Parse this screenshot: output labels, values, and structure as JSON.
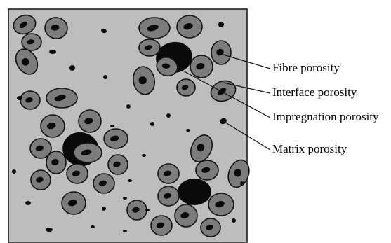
{
  "labels": {
    "fibre": "Fibre porosity",
    "interface": "Interface porosity",
    "impregnation": "Impregnation porosity",
    "matrix": "Matrix porosity"
  },
  "colors": {
    "matrix_fill": "#bdbdbd",
    "fibre_fill": "#7c7c7c",
    "pore": "#0a0a0a",
    "outline": "#111111"
  }
}
